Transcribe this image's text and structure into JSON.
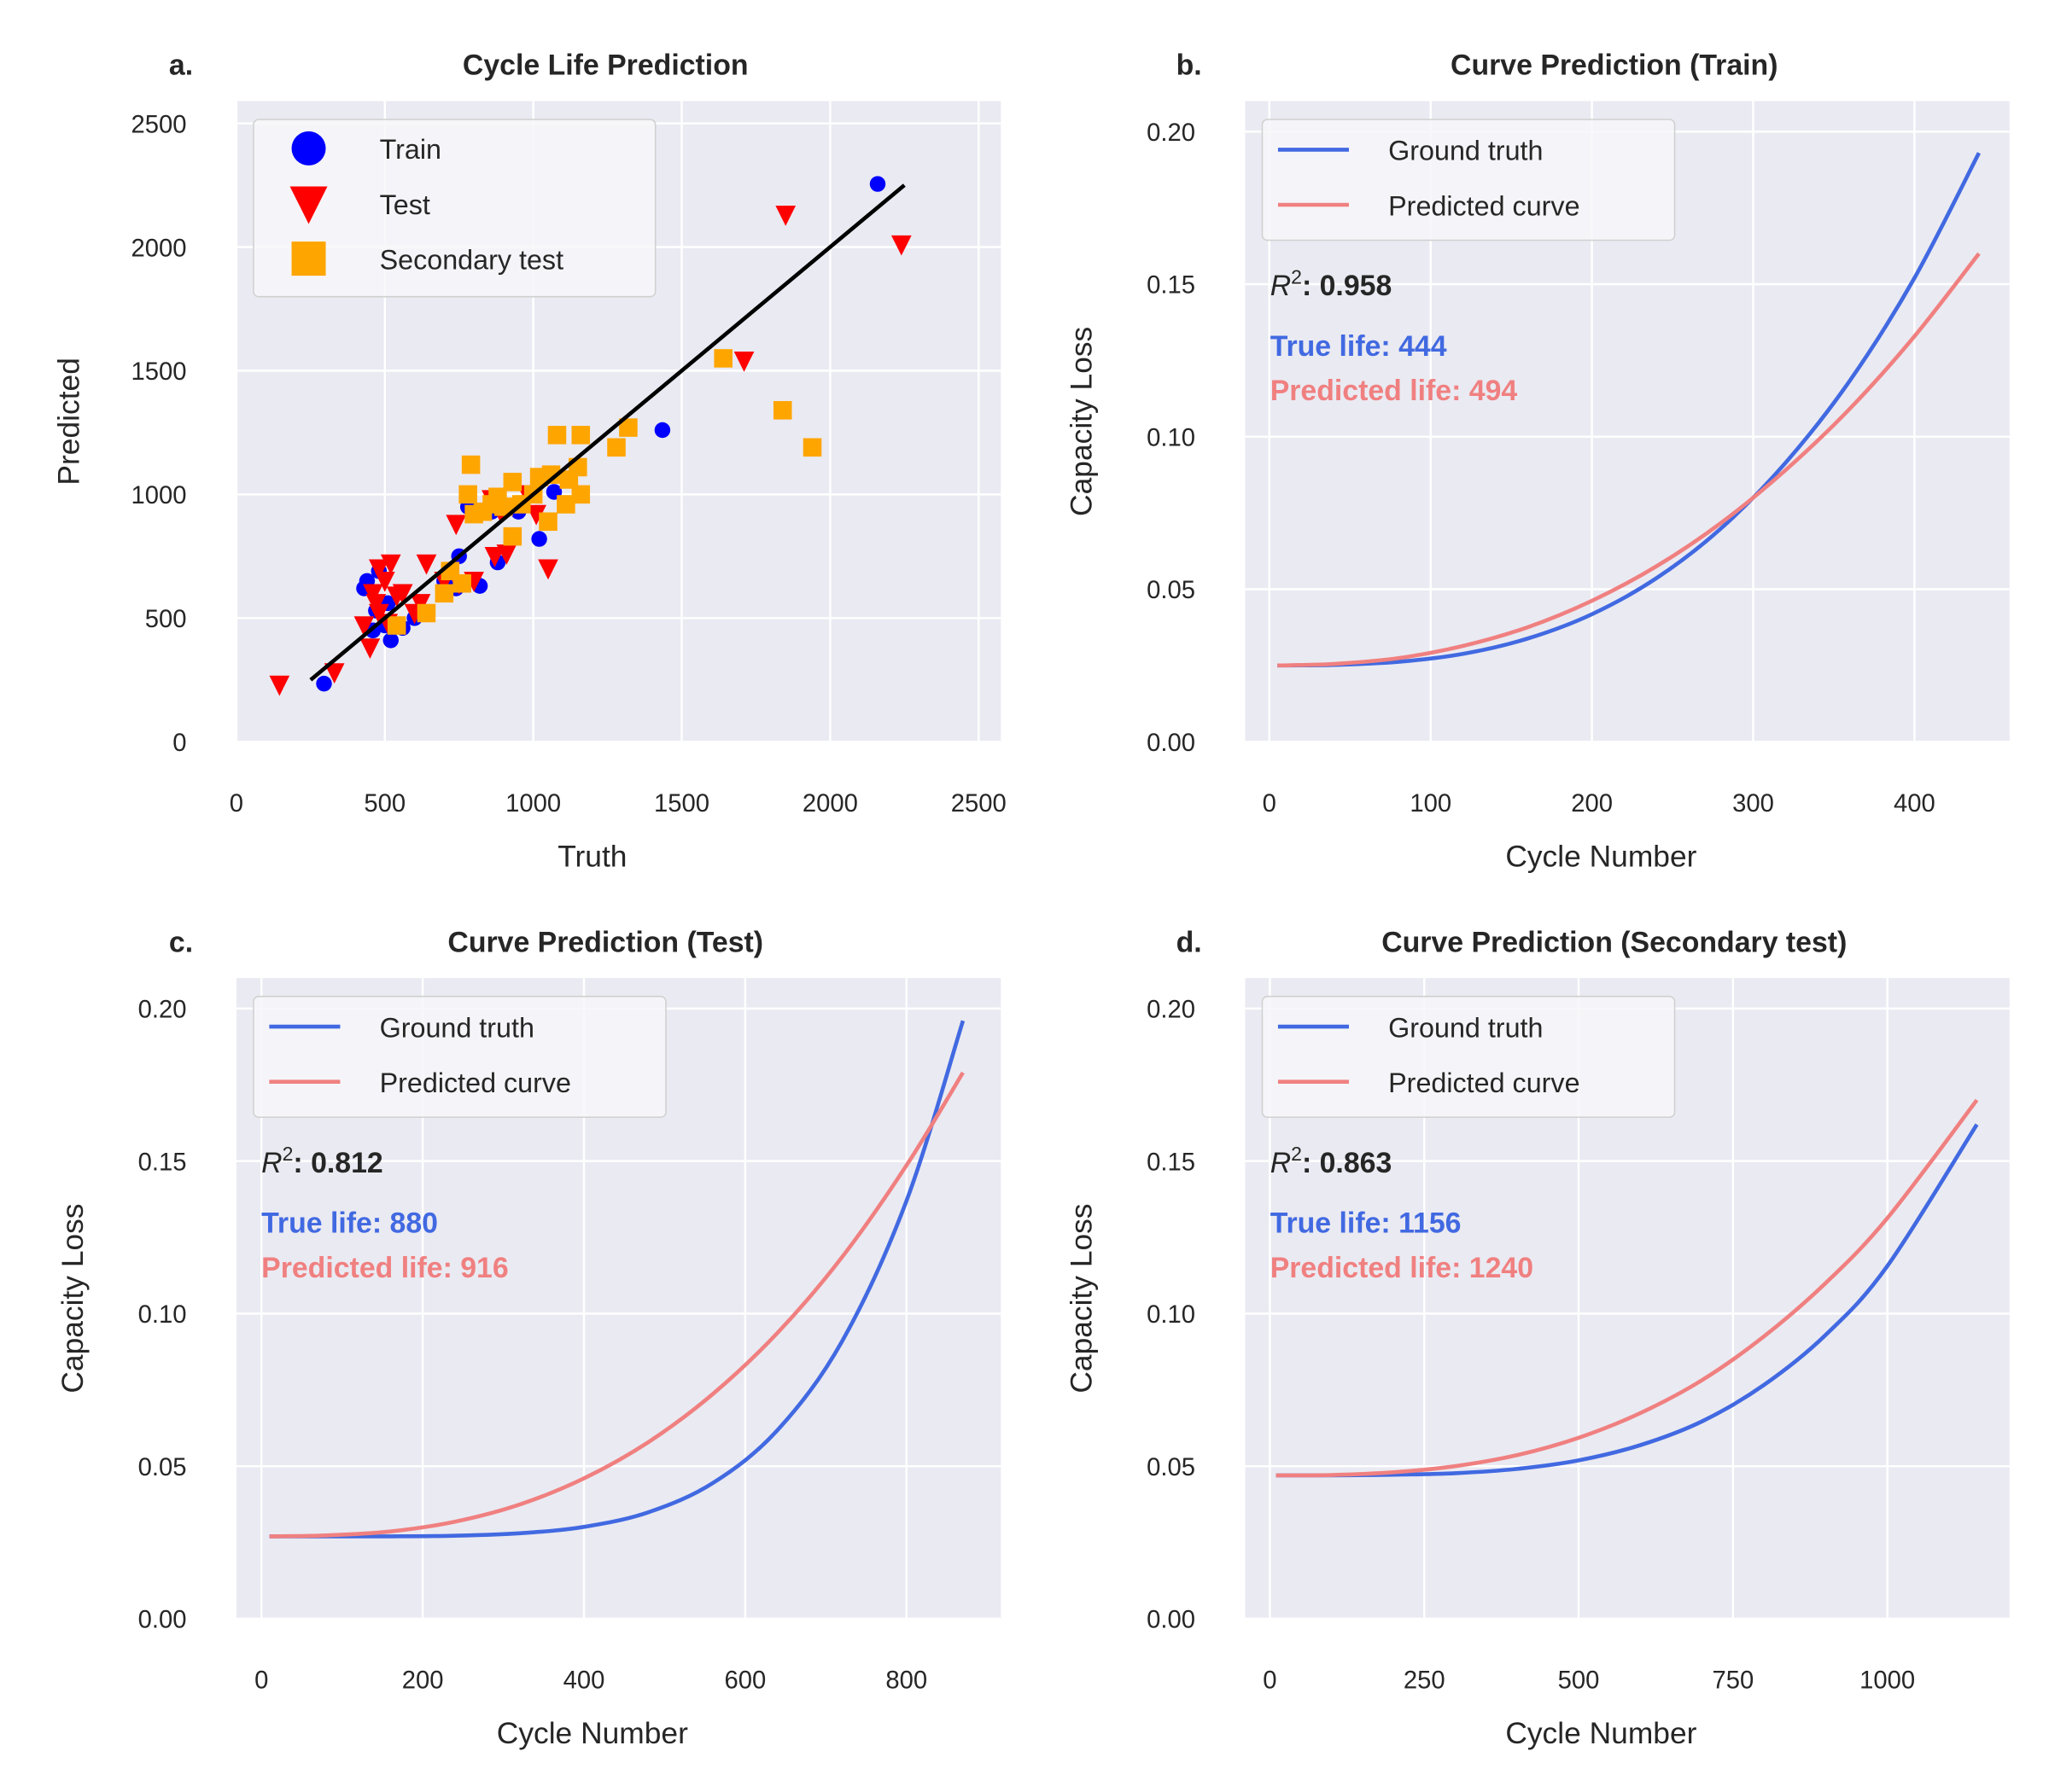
{
  "chart_data": [
    {
      "type": "scatter",
      "panel_letter": "a.",
      "title": "Cycle Life Prediction",
      "xlabel": "Truth",
      "ylabel": "Predicted",
      "xlim": [
        0,
        2575
      ],
      "ylim": [
        0,
        2590
      ],
      "xticks": [
        0,
        500,
        1000,
        1500,
        2000,
        2500
      ],
      "yticks": [
        0,
        500,
        1000,
        1500,
        2000,
        2500
      ],
      "grid": true,
      "legend_position": "top-left",
      "series": [
        {
          "name": "Train",
          "marker": "circle",
          "color": "#0000ff",
          "points": [
            [
              295,
              235
            ],
            [
              2160,
              2255
            ],
            [
              1435,
              1260
            ],
            [
              1020,
              820
            ],
            [
              1070,
              1010
            ],
            [
              880,
              725
            ],
            [
              820,
              630
            ],
            [
              780,
              950
            ],
            [
              740,
              620
            ],
            [
              600,
              500
            ],
            [
              480,
              690
            ],
            [
              440,
              650
            ],
            [
              430,
              620
            ],
            [
              520,
              410
            ],
            [
              560,
              460
            ],
            [
              470,
              530
            ],
            [
              500,
              470
            ],
            [
              750,
              750
            ],
            [
              860,
              930
            ],
            [
              950,
              930
            ],
            [
              700,
              650
            ],
            [
              510,
              560
            ],
            [
              460,
              450
            ]
          ]
        },
        {
          "name": "Test",
          "marker": "triangle-down",
          "color": "#ff0000",
          "points": [
            [
              145,
              230
            ],
            [
              330,
              280
            ],
            [
              450,
              380
            ],
            [
              2240,
              2010
            ],
            [
              1850,
              2130
            ],
            [
              1710,
              1540
            ],
            [
              1050,
              700
            ],
            [
              860,
              980
            ],
            [
              740,
              880
            ],
            [
              910,
              760
            ],
            [
              870,
              750
            ],
            [
              640,
              720
            ],
            [
              700,
              650
            ],
            [
              520,
              720
            ],
            [
              480,
              700
            ],
            [
              460,
              600
            ],
            [
              500,
              650
            ],
            [
              540,
              590
            ],
            [
              470,
              560
            ],
            [
              430,
              470
            ],
            [
              600,
              520
            ],
            [
              620,
              560
            ],
            [
              560,
              600
            ],
            [
              800,
              650
            ],
            [
              750,
              640
            ],
            [
              1010,
              920
            ],
            [
              980,
              1000
            ],
            [
              890,
              930
            ],
            [
              480,
              520
            ],
            [
              510,
              480
            ]
          ]
        },
        {
          "name": "Secondary test",
          "marker": "square",
          "color": "#ffa500",
          "points": [
            [
              1640,
              1550
            ],
            [
              1840,
              1340
            ],
            [
              1940,
              1190
            ],
            [
              1320,
              1270
            ],
            [
              1280,
              1190
            ],
            [
              1160,
              1240
            ],
            [
              1080,
              1240
            ],
            [
              1160,
              1000
            ],
            [
              1150,
              1110
            ],
            [
              1120,
              1060
            ],
            [
              1110,
              960
            ],
            [
              1060,
              1080
            ],
            [
              1050,
              890
            ],
            [
              1020,
              1070
            ],
            [
              930,
              1050
            ],
            [
              930,
              830
            ],
            [
              900,
              950
            ],
            [
              880,
              990
            ],
            [
              860,
              960
            ],
            [
              830,
              930
            ],
            [
              800,
              920
            ],
            [
              790,
              1120
            ],
            [
              780,
              1000
            ],
            [
              760,
              640
            ],
            [
              720,
              690
            ],
            [
              640,
              520
            ],
            [
              540,
              470
            ],
            [
              700,
              600
            ],
            [
              960,
              960
            ],
            [
              1000,
              1000
            ]
          ]
        }
      ],
      "fit_line": {
        "color": "#000000",
        "points": [
          [
            250,
            250
          ],
          [
            2250,
            2250
          ]
        ]
      }
    },
    {
      "type": "line",
      "panel_letter": "b.",
      "title": "Curve Prediction (Train)",
      "xlabel": "Cycle Number",
      "ylabel": "Capacity Loss",
      "xlim": [
        -15,
        459
      ],
      "ylim": [
        0,
        0.21
      ],
      "xticks": [
        0,
        100,
        200,
        300,
        400
      ],
      "yticks": [
        "0.00",
        "0.05",
        "0.10",
        "0.15",
        "0.20"
      ],
      "grid": true,
      "legend_position": "top-left",
      "r2_label": "R",
      "r2_sup": "2",
      "r2_value": ": 0.958",
      "true_life": "True life: 444",
      "predicted_life": "Predicted life: 494",
      "series": [
        {
          "name": "Ground truth",
          "color": "#4169e1",
          "x": [
            5,
            40,
            80,
            120,
            160,
            200,
            240,
            280,
            320,
            360,
            400,
            440
          ],
          "y": [
            0.025,
            0.0252,
            0.0262,
            0.0288,
            0.0338,
            0.0418,
            0.0536,
            0.0699,
            0.0914,
            0.1184,
            0.152,
            0.193
          ]
        },
        {
          "name": "Predicted curve",
          "color": "#f08080",
          "x": [
            5,
            40,
            80,
            120,
            160,
            200,
            240,
            280,
            320,
            360,
            400,
            440
          ],
          "y": [
            0.025,
            0.0255,
            0.0274,
            0.0314,
            0.0375,
            0.0462,
            0.0575,
            0.0717,
            0.089,
            0.1092,
            0.1329,
            0.16
          ]
        }
      ]
    },
    {
      "type": "line",
      "panel_letter": "c.",
      "title": "Curve Prediction (Test)",
      "xlabel": "Cycle Number",
      "ylabel": "Capacity Loss",
      "xlim": [
        -31,
        917
      ],
      "ylim": [
        0,
        0.21
      ],
      "xticks": [
        0,
        200,
        400,
        600,
        800
      ],
      "yticks": [
        "0.00",
        "0.05",
        "0.10",
        "0.15",
        "0.20"
      ],
      "grid": true,
      "legend_position": "top-left",
      "r2_label": "R",
      "r2_sup": "2",
      "r2_value": ": 0.812",
      "true_life": "True life: 880",
      "predicted_life": "Predicted life: 916",
      "series": [
        {
          "name": "Ground truth",
          "color": "#4169e1",
          "x": [
            10,
            80,
            160,
            240,
            320,
            400,
            480,
            560,
            640,
            720,
            800,
            870
          ],
          "y": [
            0.027,
            0.027,
            0.027,
            0.0272,
            0.028,
            0.0301,
            0.0349,
            0.0445,
            0.0618,
            0.0909,
            0.137,
            0.196
          ]
        },
        {
          "name": "Predicted curve",
          "color": "#f08080",
          "x": [
            10,
            80,
            160,
            240,
            320,
            400,
            480,
            560,
            640,
            720,
            800,
            870
          ],
          "y": [
            0.027,
            0.0273,
            0.0286,
            0.0318,
            0.0374,
            0.046,
            0.0579,
            0.0737,
            0.0937,
            0.1185,
            0.1486,
            0.179
          ]
        }
      ]
    },
    {
      "type": "line",
      "panel_letter": "d.",
      "title": "Curve Prediction (Secondary test)",
      "xlabel": "Cycle Number",
      "ylabel": "Capacity Loss",
      "xlim": [
        -40,
        1198
      ],
      "ylim": [
        0,
        0.21
      ],
      "xticks": [
        0,
        250,
        500,
        750,
        1000
      ],
      "yticks": [
        "0.00",
        "0.05",
        "0.10",
        "0.15",
        "0.20"
      ],
      "grid": true,
      "legend_position": "top-left",
      "r2_label": "R",
      "r2_sup": "2",
      "r2_value": ": 0.863",
      "true_life": "True life: 1156",
      "predicted_life": "Predicted life: 1240",
      "series": [
        {
          "name": "Ground truth",
          "color": "#4169e1",
          "x": [
            10,
            100,
            200,
            300,
            400,
            500,
            600,
            700,
            800,
            900,
            1000,
            1145
          ],
          "y": [
            0.047,
            0.047,
            0.0472,
            0.0477,
            0.0491,
            0.0519,
            0.0569,
            0.0647,
            0.0766,
            0.093,
            0.1156,
            0.162
          ]
        },
        {
          "name": "Predicted curve",
          "color": "#f08080",
          "x": [
            10,
            100,
            200,
            300,
            400,
            500,
            600,
            700,
            800,
            900,
            1000,
            1145
          ],
          "y": [
            0.047,
            0.0471,
            0.048,
            0.05,
            0.0536,
            0.0593,
            0.0674,
            0.0782,
            0.0925,
            0.11,
            0.1313,
            0.17
          ]
        }
      ]
    }
  ]
}
